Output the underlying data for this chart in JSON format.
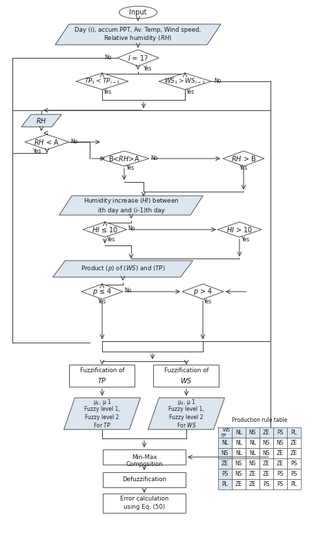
{
  "bg_color": "#ffffff",
  "flow_fill": "#dce6f1",
  "flow_edge": "#4f4f4f",
  "diamond_fill": "#ffffff",
  "diamond_edge": "#4f4f4f",
  "rect_fill": "#ffffff",
  "rect_edge": "#4f4f4f",
  "text_color": "#1a1a1a",
  "font_size": 7.0,
  "small_font": 6.2,
  "tiny_font": 5.5,
  "table_data": [
    [
      "WS/TP",
      "NL",
      "NS",
      "ZE",
      "PS",
      "PL"
    ],
    [
      "NL",
      "NL",
      "NL",
      "NS",
      "NS",
      "ZE"
    ],
    [
      "NS",
      "NL",
      "NL",
      "NS",
      "ZE",
      "ZE"
    ],
    [
      "ZE",
      "NS",
      "NS",
      "ZE",
      "ZE",
      "PS"
    ],
    [
      "PS",
      "NS",
      "ZE",
      "ZE",
      "PS",
      "PS"
    ],
    [
      "PL",
      "ZE",
      "ZE",
      "PS",
      "PS",
      "PL"
    ]
  ]
}
